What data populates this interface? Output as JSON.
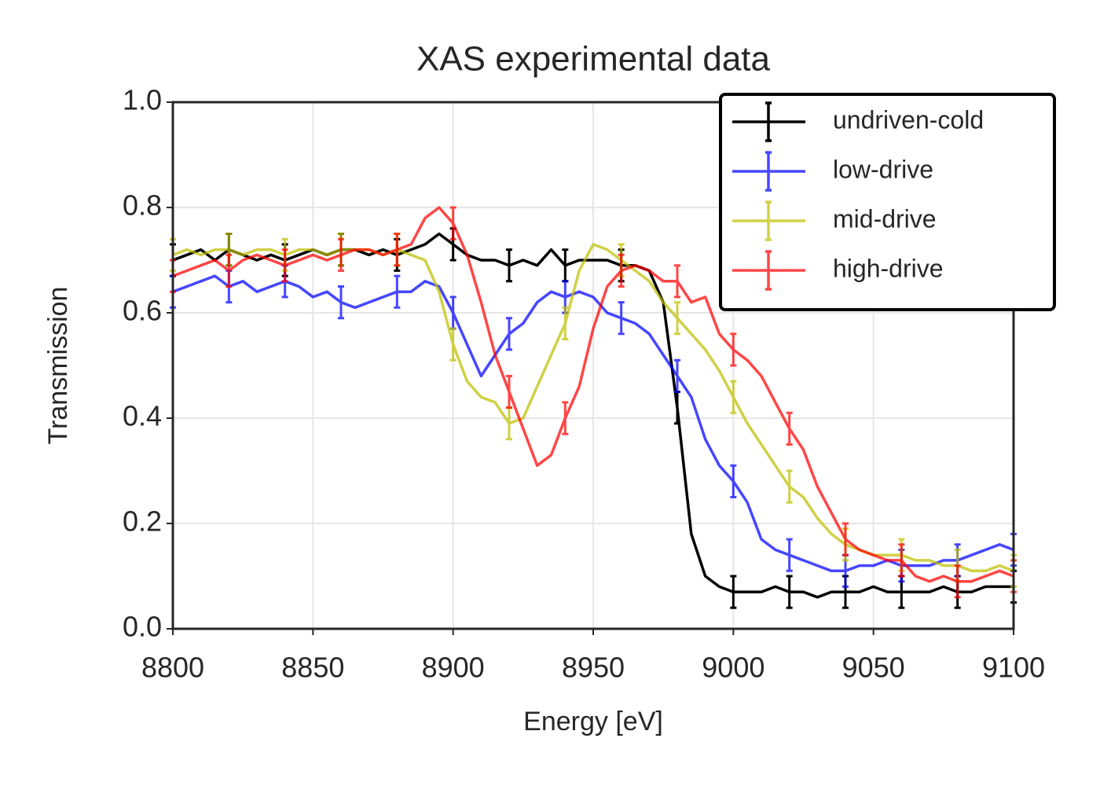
{
  "chart_data": {
    "type": "line",
    "title": "XAS experimental data",
    "x_label": "Energy [eV]",
    "y_label": "Transmission",
    "x": [
      8800,
      8805,
      8810,
      8815,
      8820,
      8825,
      8830,
      8835,
      8840,
      8845,
      8850,
      8855,
      8860,
      8865,
      8870,
      8875,
      8880,
      8885,
      8890,
      8895,
      8900,
      8905,
      8910,
      8915,
      8920,
      8925,
      8930,
      8935,
      8940,
      8945,
      8950,
      8955,
      8960,
      8965,
      8970,
      8975,
      8980,
      8985,
      8990,
      8995,
      9000,
      9005,
      9010,
      9015,
      9020,
      9025,
      9030,
      9035,
      9040,
      9045,
      9050,
      9055,
      9060,
      9065,
      9070,
      9075,
      9080,
      9085,
      9090,
      9095,
      9100
    ],
    "series": [
      {
        "name": "undriven-cold",
        "color": "#000000",
        "values": [
          0.7,
          0.71,
          0.72,
          0.7,
          0.72,
          0.71,
          0.7,
          0.71,
          0.7,
          0.71,
          0.72,
          0.71,
          0.72,
          0.72,
          0.71,
          0.72,
          0.71,
          0.72,
          0.73,
          0.75,
          0.73,
          0.71,
          0.7,
          0.7,
          0.69,
          0.7,
          0.69,
          0.72,
          0.69,
          0.7,
          0.7,
          0.7,
          0.69,
          0.69,
          0.68,
          0.62,
          0.42,
          0.18,
          0.1,
          0.08,
          0.07,
          0.07,
          0.07,
          0.08,
          0.07,
          0.07,
          0.06,
          0.07,
          0.07,
          0.07,
          0.08,
          0.07,
          0.07,
          0.07,
          0.07,
          0.08,
          0.07,
          0.07,
          0.08,
          0.08,
          0.08
        ],
        "errors": [
          0.03,
          null,
          null,
          null,
          0.03,
          null,
          null,
          null,
          0.03,
          null,
          null,
          null,
          0.03,
          null,
          null,
          null,
          0.03,
          null,
          null,
          null,
          0.03,
          null,
          null,
          null,
          0.03,
          null,
          null,
          null,
          0.03,
          null,
          null,
          null,
          0.03,
          null,
          null,
          null,
          0.03,
          null,
          null,
          null,
          0.03,
          null,
          null,
          null,
          0.03,
          null,
          null,
          null,
          0.03,
          null,
          null,
          null,
          0.03,
          null,
          null,
          null,
          0.03,
          null,
          null,
          null,
          0.03
        ]
      },
      {
        "name": "low-drive",
        "color": "#0000ff",
        "values": [
          0.64,
          0.65,
          0.66,
          0.67,
          0.65,
          0.66,
          0.64,
          0.65,
          0.66,
          0.65,
          0.63,
          0.64,
          0.62,
          0.61,
          0.62,
          0.63,
          0.64,
          0.64,
          0.66,
          0.65,
          0.6,
          0.54,
          0.48,
          0.52,
          0.56,
          0.58,
          0.62,
          0.64,
          0.63,
          0.64,
          0.63,
          0.6,
          0.59,
          0.58,
          0.56,
          0.52,
          0.48,
          0.44,
          0.36,
          0.31,
          0.28,
          0.24,
          0.17,
          0.15,
          0.14,
          0.13,
          0.12,
          0.11,
          0.11,
          0.12,
          0.12,
          0.13,
          0.12,
          0.12,
          0.12,
          0.13,
          0.13,
          0.14,
          0.15,
          0.16,
          0.15
        ],
        "errors": [
          0.03,
          null,
          null,
          null,
          0.03,
          null,
          null,
          null,
          0.03,
          null,
          null,
          null,
          0.03,
          null,
          null,
          null,
          0.03,
          null,
          null,
          null,
          0.03,
          null,
          null,
          null,
          0.03,
          null,
          null,
          null,
          0.03,
          null,
          null,
          null,
          0.03,
          null,
          null,
          null,
          0.03,
          null,
          null,
          null,
          0.03,
          null,
          null,
          null,
          0.03,
          null,
          null,
          null,
          0.03,
          null,
          null,
          null,
          0.03,
          null,
          null,
          null,
          0.03,
          null,
          null,
          null,
          0.03
        ]
      },
      {
        "name": "mid-drive",
        "color": "#bfbf00",
        "values": [
          0.71,
          0.72,
          0.71,
          0.72,
          0.72,
          0.71,
          0.72,
          0.72,
          0.71,
          0.72,
          0.72,
          0.71,
          0.72,
          0.72,
          0.72,
          0.71,
          0.72,
          0.71,
          0.7,
          0.64,
          0.54,
          0.47,
          0.44,
          0.43,
          0.39,
          0.4,
          0.46,
          0.52,
          0.58,
          0.68,
          0.73,
          0.72,
          0.7,
          0.68,
          0.66,
          0.62,
          0.59,
          0.56,
          0.53,
          0.49,
          0.44,
          0.39,
          0.35,
          0.31,
          0.27,
          0.25,
          0.21,
          0.18,
          0.16,
          0.15,
          0.14,
          0.14,
          0.14,
          0.13,
          0.13,
          0.12,
          0.12,
          0.11,
          0.11,
          0.12,
          0.11
        ],
        "errors": [
          0.03,
          null,
          null,
          null,
          0.03,
          null,
          null,
          null,
          0.03,
          null,
          null,
          null,
          0.03,
          null,
          null,
          null,
          0.03,
          null,
          null,
          null,
          0.03,
          null,
          null,
          null,
          0.03,
          null,
          null,
          null,
          0.03,
          null,
          null,
          null,
          0.03,
          null,
          null,
          null,
          0.03,
          null,
          null,
          null,
          0.03,
          null,
          null,
          null,
          0.03,
          null,
          null,
          null,
          0.03,
          null,
          null,
          null,
          0.03,
          null,
          null,
          null,
          0.03,
          null,
          null,
          null,
          0.03
        ]
      },
      {
        "name": "high-drive",
        "color": "#ff0000",
        "values": [
          0.67,
          0.68,
          0.69,
          0.7,
          0.68,
          0.7,
          0.71,
          0.7,
          0.69,
          0.7,
          0.71,
          0.7,
          0.71,
          0.72,
          0.72,
          0.71,
          0.72,
          0.73,
          0.78,
          0.8,
          0.77,
          0.71,
          0.62,
          0.52,
          0.45,
          0.38,
          0.31,
          0.33,
          0.4,
          0.46,
          0.57,
          0.65,
          0.68,
          0.69,
          0.68,
          0.66,
          0.66,
          0.62,
          0.63,
          0.56,
          0.53,
          0.51,
          0.48,
          0.43,
          0.38,
          0.34,
          0.27,
          0.22,
          0.17,
          0.15,
          0.14,
          0.13,
          0.13,
          0.1,
          0.09,
          0.1,
          0.09,
          0.09,
          0.1,
          0.11,
          0.1
        ],
        "errors": [
          0.03,
          null,
          null,
          null,
          0.03,
          null,
          null,
          null,
          0.03,
          null,
          null,
          null,
          0.03,
          null,
          null,
          null,
          0.03,
          null,
          null,
          null,
          0.03,
          null,
          null,
          null,
          0.03,
          null,
          null,
          null,
          0.03,
          null,
          null,
          null,
          0.03,
          null,
          null,
          null,
          0.03,
          null,
          null,
          null,
          0.03,
          null,
          null,
          null,
          0.03,
          null,
          null,
          null,
          0.03,
          null,
          null,
          null,
          0.03,
          null,
          null,
          null,
          0.03,
          null,
          null,
          null,
          0.03
        ]
      }
    ],
    "xlim": [
      8800,
      9100
    ],
    "xticks": [
      8800,
      8850,
      8900,
      8950,
      9000,
      9050,
      9100
    ],
    "ylim": [
      0,
      1
    ],
    "yticks": [
      {
        "value": 0,
        "label": "0.0"
      },
      0.2,
      0.4,
      0.6,
      0.8,
      {
        "value": 1,
        "label": "1.0"
      }
    ],
    "grid": true,
    "legend": "upper right"
  }
}
